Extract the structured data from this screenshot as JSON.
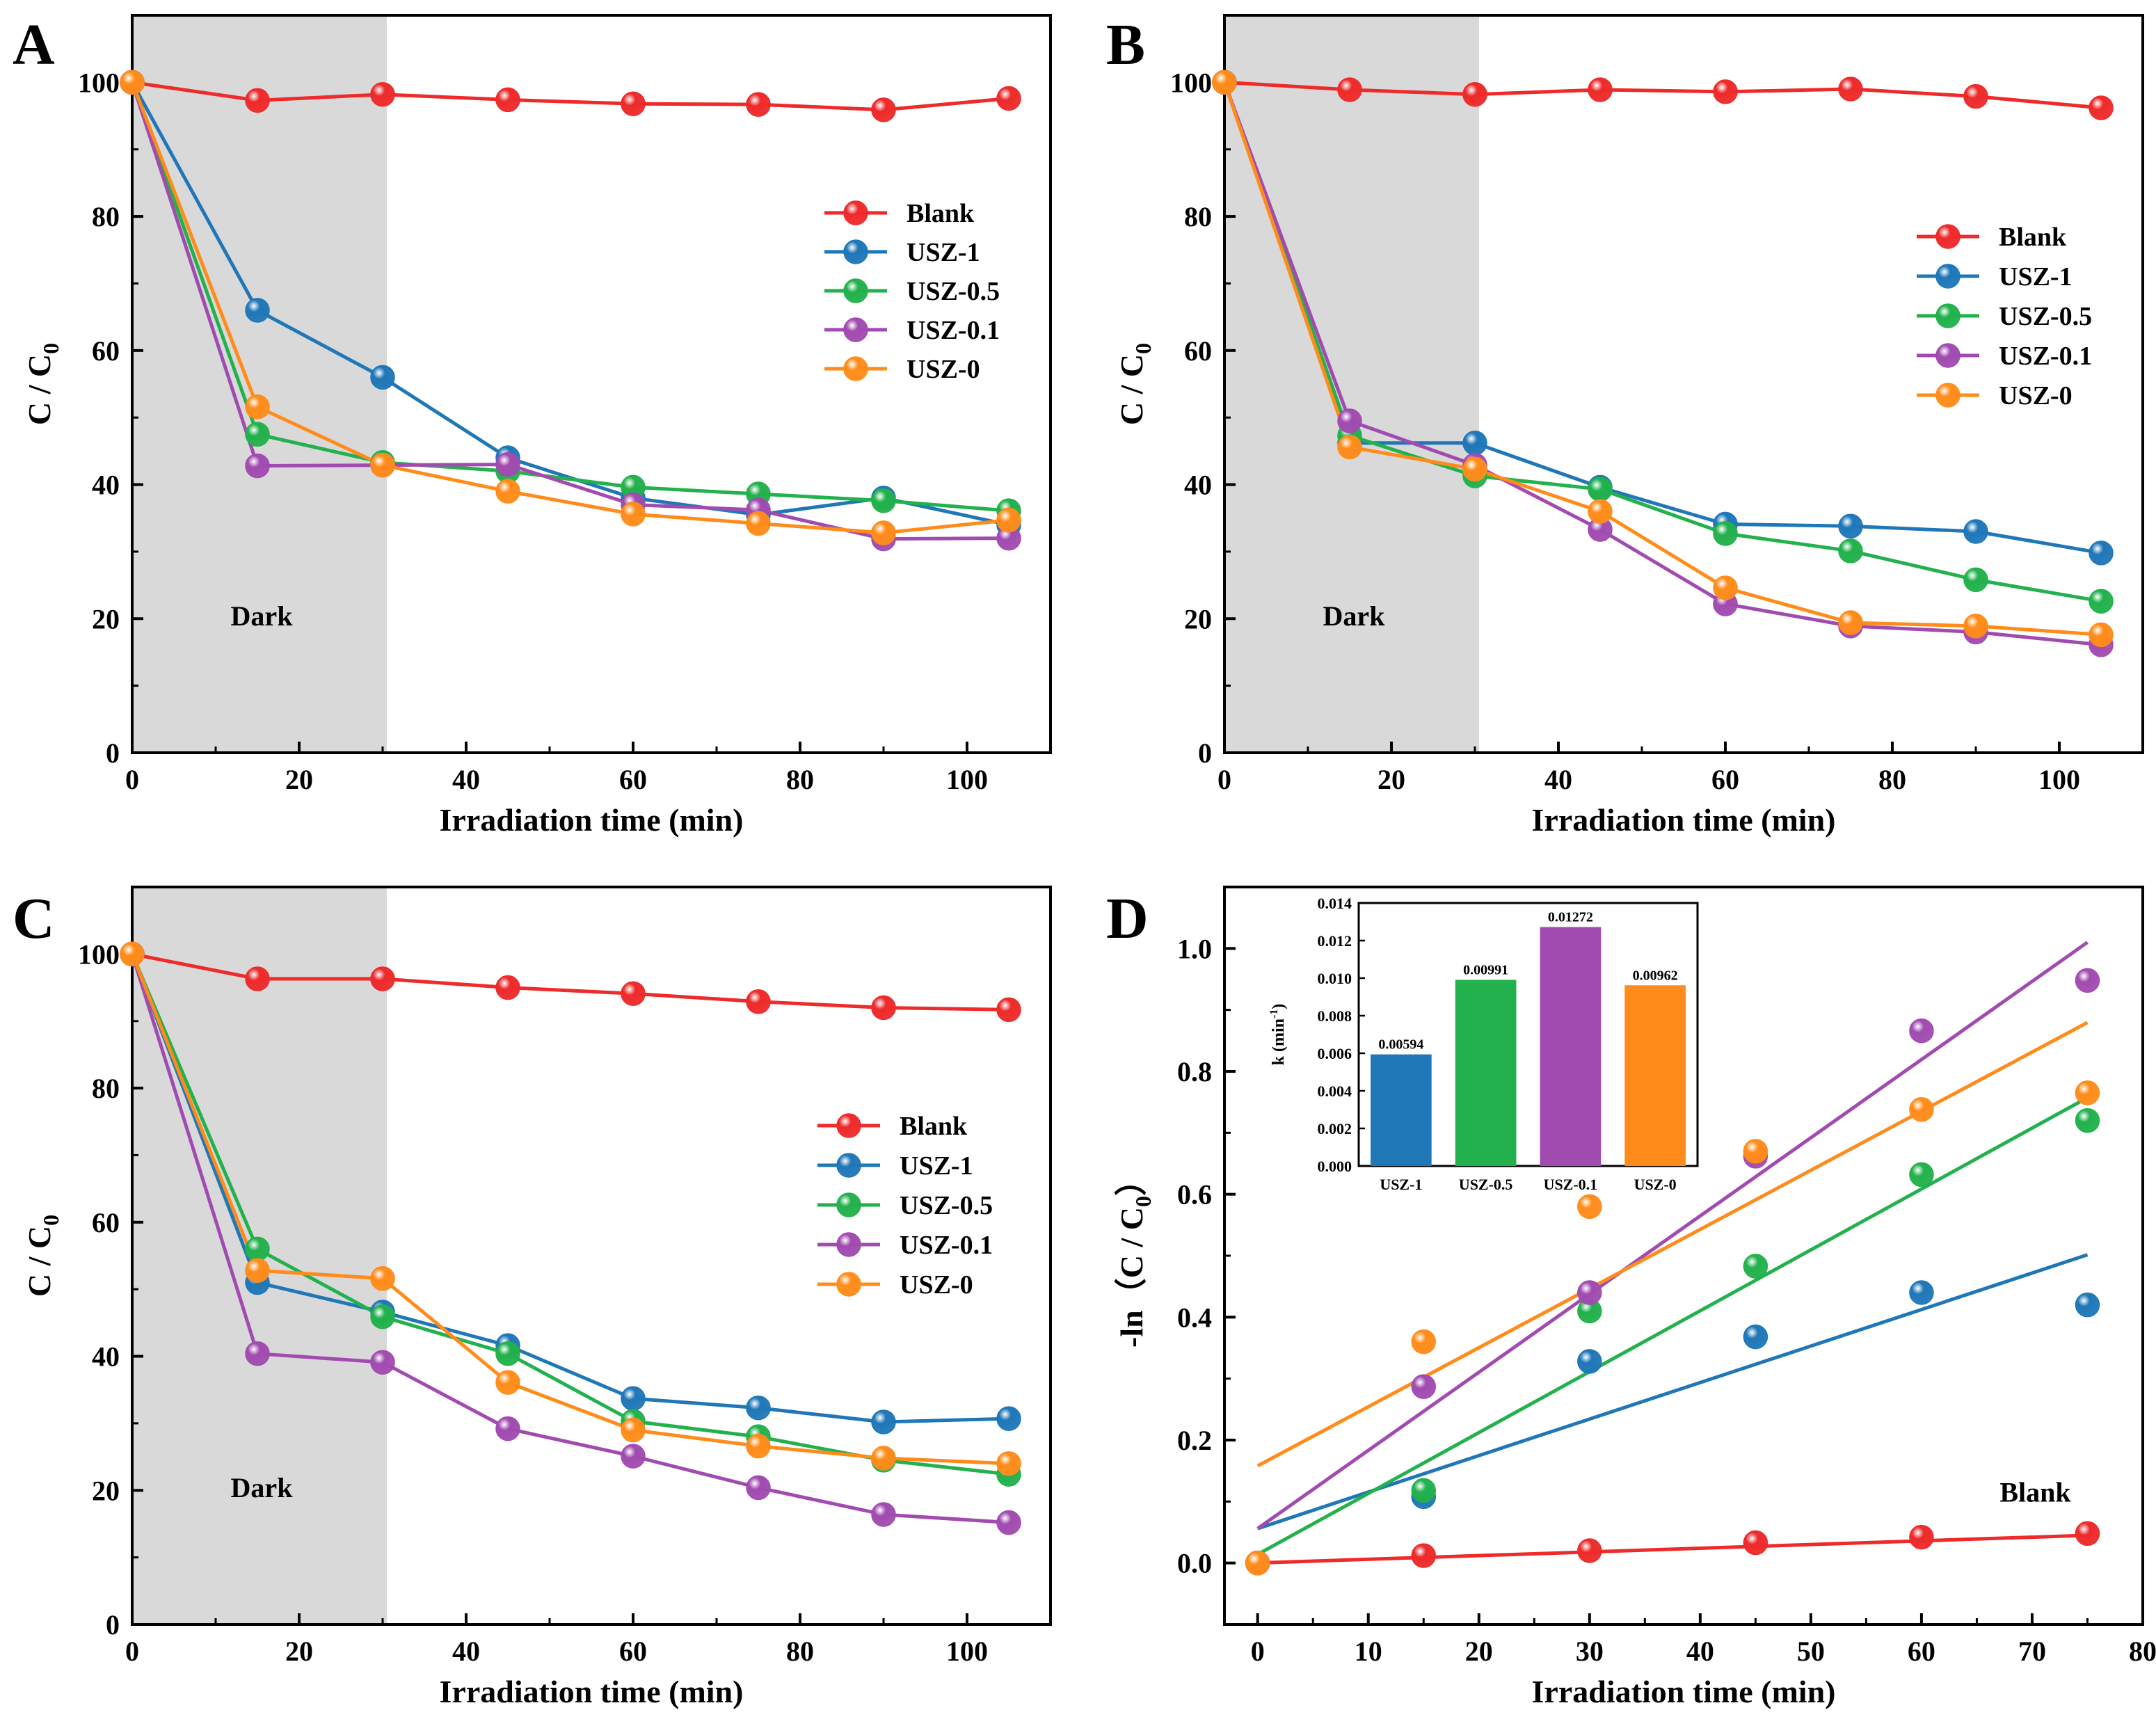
{
  "palette": {
    "Blank": "#ee2a2a",
    "USZ-1": "#1f77b8",
    "USZ-0.5": "#22b14c",
    "USZ-0.1": "#a14bb0",
    "USZ-0": "#ff8c1a",
    "dark_shade": "#d9d9d9"
  },
  "chart_data": [
    {
      "panel": "A",
      "type": "line",
      "title": "",
      "xlabel": "Irradiation time (min)",
      "ylabel": "C / C0",
      "ylabel_main": "C / C",
      "ylabel_sub": "0",
      "xlim": [
        0,
        110
      ],
      "ylim": [
        0,
        110
      ],
      "xticks": [
        0,
        20,
        40,
        60,
        80,
        100
      ],
      "yticks": [
        0,
        20,
        40,
        60,
        80,
        100
      ],
      "dark_region": [
        0,
        30.5
      ],
      "dark_label": "Dark",
      "legend_position": "center-right",
      "x": [
        0,
        15,
        30,
        45,
        60,
        75,
        90,
        105
      ],
      "series": [
        {
          "name": "Blank",
          "values": [
            100,
            97.3,
            98.2,
            97.4,
            96.8,
            96.7,
            95.9,
            97.6
          ]
        },
        {
          "name": "USZ-1",
          "values": [
            100,
            66,
            56,
            44,
            38,
            35.5,
            38,
            34
          ]
        },
        {
          "name": "USZ-0.5",
          "values": [
            100,
            47.5,
            43.3,
            42,
            39.6,
            38.6,
            37.6,
            36.1
          ]
        },
        {
          "name": "USZ-0.1",
          "values": [
            100,
            42.8,
            42.9,
            43,
            37,
            36.2,
            31.9,
            32
          ]
        },
        {
          "name": "USZ-0",
          "values": [
            100,
            51.6,
            42.9,
            39,
            35.6,
            34.2,
            32.8,
            34.7
          ]
        }
      ]
    },
    {
      "panel": "B",
      "type": "line",
      "title": "",
      "xlabel": "Irradiation time (min)",
      "ylabel": "C / C0",
      "ylabel_main": "C / C",
      "ylabel_sub": "0",
      "xlim": [
        0,
        110
      ],
      "ylim": [
        0,
        110
      ],
      "xticks": [
        0,
        20,
        40,
        60,
        80,
        100
      ],
      "yticks": [
        0,
        20,
        40,
        60,
        80,
        100
      ],
      "dark_region": [
        0,
        30.5
      ],
      "dark_label": "Dark",
      "legend_position": "center-right",
      "x": [
        0,
        15,
        30,
        45,
        60,
        75,
        90,
        105
      ],
      "series": [
        {
          "name": "Blank",
          "values": [
            100,
            98.9,
            98.2,
            98.9,
            98.6,
            99,
            97.9,
            96.2
          ]
        },
        {
          "name": "USZ-1",
          "values": [
            100,
            46.2,
            46.2,
            39.6,
            34.1,
            33.8,
            33,
            29.8
          ]
        },
        {
          "name": "USZ-0.5",
          "values": [
            100,
            47.3,
            41.3,
            39.3,
            32.7,
            30.1,
            25.8,
            22.6
          ]
        },
        {
          "name": "USZ-0.1",
          "values": [
            100,
            49.5,
            42.9,
            33.3,
            22.2,
            18.9,
            18,
            16.1
          ]
        },
        {
          "name": "USZ-0",
          "values": [
            100,
            45.6,
            42.3,
            36,
            24.6,
            19.4,
            18.9,
            17.6
          ]
        }
      ]
    },
    {
      "panel": "C",
      "type": "line",
      "title": "",
      "xlabel": "Irradiation time (min)",
      "ylabel": "C / C0",
      "ylabel_main": "C / C",
      "ylabel_sub": "0",
      "xlim": [
        0,
        110
      ],
      "ylim": [
        0,
        110
      ],
      "xticks": [
        0,
        20,
        40,
        60,
        80,
        100
      ],
      "yticks": [
        0,
        20,
        40,
        60,
        80,
        100
      ],
      "dark_region": [
        0,
        30.5
      ],
      "dark_label": "Dark",
      "legend_position": "center-right",
      "x": [
        0,
        15,
        30,
        45,
        60,
        75,
        90,
        105
      ],
      "series": [
        {
          "name": "Blank",
          "values": [
            100,
            96.3,
            96.3,
            95,
            94.1,
            92.9,
            92,
            91.7
          ]
        },
        {
          "name": "USZ-1",
          "values": [
            100,
            51,
            46.6,
            41.6,
            33.7,
            32.3,
            30.2,
            30.7
          ]
        },
        {
          "name": "USZ-0.5",
          "values": [
            100,
            56,
            45.9,
            40.4,
            30.3,
            28,
            24.5,
            22.4
          ]
        },
        {
          "name": "USZ-0.1",
          "values": [
            100,
            40.4,
            39.1,
            29.2,
            25.1,
            20.4,
            16.4,
            15.2
          ]
        },
        {
          "name": "USZ-0",
          "values": [
            100,
            52.8,
            51.6,
            36.1,
            29,
            26.6,
            24.8,
            24
          ]
        }
      ]
    },
    {
      "panel": "D",
      "type": "scatter",
      "title": "",
      "xlabel": "Irradiation time (min)",
      "ylabel": "-ln（C / C0）",
      "ylabel_main": "-ln（C / C",
      "ylabel_sub": "0",
      "ylabel_end": "）",
      "xlim": [
        -3,
        80
      ],
      "ylim": [
        -0.1,
        1.1
      ],
      "xticks": [
        0,
        10,
        20,
        30,
        40,
        50,
        60,
        70,
        80
      ],
      "yticks": [
        0.0,
        0.2,
        0.4,
        0.6,
        0.8,
        1.0
      ],
      "ytick_labels": [
        "0.0",
        "0.2",
        "0.4",
        "0.6",
        "0.8",
        "1.0"
      ],
      "annotation": "Blank",
      "x": [
        0,
        15,
        30,
        45,
        60,
        75
      ],
      "series": [
        {
          "name": "Blank",
          "values": [
            0,
            0.012,
            0.02,
            0.033,
            0.042,
            0.048
          ],
          "fit": [
            0.0,
            0.0006
          ]
        },
        {
          "name": "USZ-1",
          "values": [
            0,
            0.108,
            0.328,
            0.368,
            0.44,
            0.42
          ],
          "fit": [
            0.056,
            0.00594
          ]
        },
        {
          "name": "USZ-0.5",
          "values": [
            0,
            0.118,
            0.41,
            0.483,
            0.632,
            0.72
          ],
          "fit": [
            0.014,
            0.00991
          ]
        },
        {
          "name": "USZ-0.1",
          "values": [
            0,
            0.287,
            0.44,
            0.662,
            0.866,
            0.948
          ],
          "fit": [
            0.056,
            0.01272
          ]
        },
        {
          "name": "USZ-0",
          "values": [
            0,
            0.36,
            0.58,
            0.67,
            0.738,
            0.765
          ],
          "fit": [
            0.158,
            0.00962
          ]
        }
      ],
      "inset": {
        "type": "bar",
        "ylabel": "k (min-1)",
        "ylabel_main": "k (min",
        "ylabel_sup": "-1",
        "ylabel_end": ")",
        "ylim": [
          0,
          0.014
        ],
        "yticks": [
          0.0,
          0.002,
          0.004,
          0.006,
          0.008,
          0.01,
          0.012,
          0.014
        ],
        "ytick_labels": [
          "0.000",
          "0.002",
          "0.004",
          "0.006",
          "0.008",
          "0.010",
          "0.012",
          "0.014"
        ],
        "categories": [
          "USZ-1",
          "USZ-0.5",
          "USZ-0.1",
          "USZ-0"
        ],
        "values": [
          0.00594,
          0.00991,
          0.01272,
          0.00962
        ],
        "value_labels": [
          "0.00594",
          "0.00991",
          "0.01272",
          "0.00962"
        ]
      }
    }
  ]
}
